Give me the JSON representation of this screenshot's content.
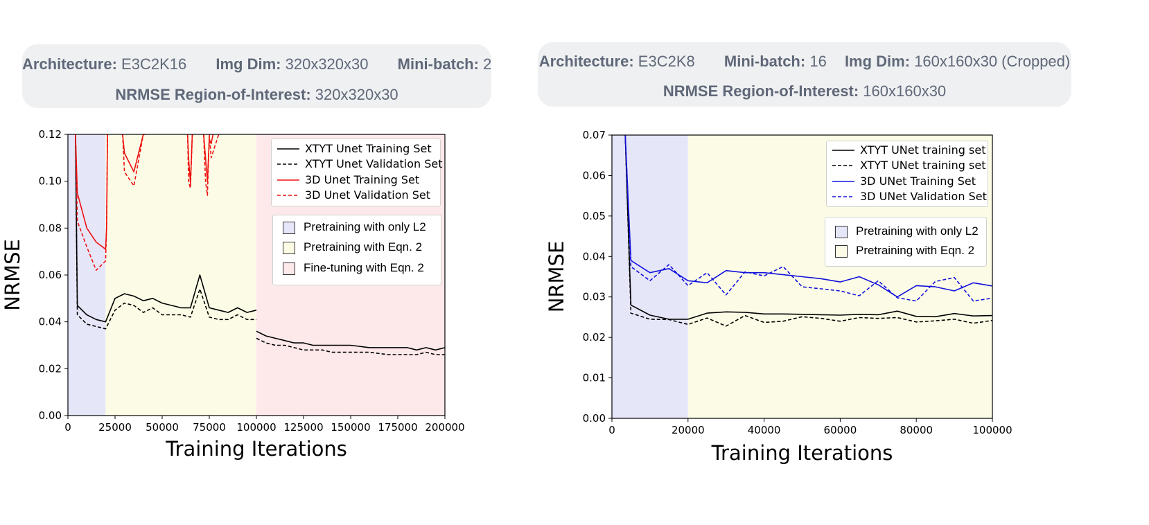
{
  "panels": [
    {
      "header": {
        "architecture_label": "Architecture:",
        "architecture": "E3C2K16",
        "imgdim_label": "Img Dim:",
        "imgdim": "320x320x30",
        "minibatch_label": "Mini-batch:",
        "minibatch": "2",
        "roi_label": "NRMSE Region-of-Interest:",
        "roi": "320x320x30"
      },
      "legend_series": [
        "XTYT Unet Training Set",
        "XTYT Unet Validation Set",
        "3D Unet Training Set",
        "3D Unet Validation Set"
      ],
      "legend_regions": [
        "Pretraining with only L2",
        "Pretraining with Eqn. 2",
        "Fine-tuning with Eqn. 2"
      ]
    },
    {
      "header": {
        "architecture_label": "Architecture:",
        "architecture": "E3C2K8",
        "minibatch_label": "Mini-batch:",
        "minibatch": "16",
        "imgdim_label": "Img Dim:",
        "imgdim": "160x160x30 (Cropped)",
        "roi_label": "NRMSE Region-of-Interest:",
        "roi": "160x160x30"
      },
      "legend_series": [
        "XTYT UNet training set",
        "XTYT UNet training set",
        "3D UNet Training Set",
        "3D UNet Validation Set"
      ],
      "legend_regions": [
        "Pretraining with only L2",
        "Pretraining with Eqn. 2"
      ]
    }
  ],
  "chart_data": [
    {
      "type": "line",
      "title": "",
      "xlabel": "Training Iterations",
      "ylabel": "NRMSE",
      "xlim": [
        0,
        200000
      ],
      "ylim": [
        0,
        0.12
      ],
      "xticks": [
        0,
        25000,
        50000,
        75000,
        100000,
        125000,
        150000,
        175000,
        200000
      ],
      "xtick_labels": [
        "0",
        "25000",
        "50000",
        "75000",
        "100000",
        "125000",
        "150000",
        "175000",
        "200000"
      ],
      "yticks": [
        0,
        0.02,
        0.04,
        0.06,
        0.08,
        0.1,
        0.12
      ],
      "ytick_labels": [
        "0.00",
        "0.02",
        "0.04",
        "0.06",
        "0.08",
        "0.10",
        "0.12"
      ],
      "regions": [
        {
          "label": "Pretraining with only L2",
          "x0": 0,
          "x1": 20000,
          "color": "#e6e6f9"
        },
        {
          "label": "Pretraining with Eqn. 2",
          "x0": 20000,
          "x1": 100000,
          "color": "#fcfce6"
        },
        {
          "label": "Fine-tuning with Eqn. 2",
          "x0": 100000,
          "x1": 200000,
          "color": "#fde8ea"
        }
      ],
      "series": [
        {
          "name": "XTYT Unet Training Set",
          "color": "#000000",
          "dash": false,
          "x": [
            4000,
            5000,
            10000,
            15000,
            20000,
            25000,
            30000,
            35000,
            40000,
            45000,
            50000,
            55000,
            60000,
            65000,
            70000,
            75000,
            80000,
            85000,
            90000,
            95000,
            100000,
            null,
            100000,
            105000,
            110000,
            115000,
            120000,
            125000,
            130000,
            135000,
            140000,
            145000,
            150000,
            160000,
            170000,
            180000,
            185000,
            190000,
            195000,
            200000
          ],
          "y": [
            0.12,
            0.047,
            0.043,
            0.041,
            0.04,
            0.05,
            0.052,
            0.051,
            0.049,
            0.05,
            0.048,
            0.047,
            0.046,
            0.046,
            0.06,
            0.046,
            0.045,
            0.044,
            0.046,
            0.044,
            0.045,
            null,
            0.036,
            0.034,
            0.033,
            0.032,
            0.031,
            0.031,
            0.03,
            0.03,
            0.03,
            0.03,
            0.03,
            0.029,
            0.029,
            0.029,
            0.028,
            0.029,
            0.028,
            0.029
          ]
        },
        {
          "name": "XTYT Unet Validation Set",
          "color": "#000000",
          "dash": true,
          "x": [
            4000,
            5000,
            10000,
            15000,
            20000,
            25000,
            30000,
            35000,
            40000,
            45000,
            50000,
            55000,
            60000,
            65000,
            70000,
            75000,
            80000,
            85000,
            90000,
            95000,
            100000,
            null,
            100000,
            105000,
            110000,
            115000,
            120000,
            125000,
            130000,
            135000,
            140000,
            145000,
            150000,
            160000,
            170000,
            180000,
            185000,
            190000,
            195000,
            200000
          ],
          "y": [
            0.12,
            0.043,
            0.039,
            0.038,
            0.037,
            0.045,
            0.048,
            0.047,
            0.044,
            0.046,
            0.043,
            0.043,
            0.043,
            0.042,
            0.054,
            0.042,
            0.041,
            0.041,
            0.043,
            0.041,
            0.041,
            null,
            0.033,
            0.031,
            0.03,
            0.03,
            0.029,
            0.028,
            0.028,
            0.028,
            0.027,
            0.027,
            0.027,
            0.027,
            0.026,
            0.026,
            0.026,
            0.027,
            0.026,
            0.026
          ]
        },
        {
          "name": "3D Unet Training Set",
          "color": "#ee1111",
          "dash": false,
          "x": [
            4000,
            5000,
            10000,
            15000,
            20000,
            20500,
            21000,
            null,
            29000,
            30000,
            35000,
            40000,
            41000,
            null,
            63500,
            64000,
            65000,
            66000,
            null,
            72000,
            73000,
            74000,
            75000,
            76000,
            77000
          ],
          "y": [
            0.12,
            0.095,
            0.08,
            0.074,
            0.071,
            0.08,
            0.12,
            null,
            0.12,
            0.112,
            0.104,
            0.12,
            0.12,
            null,
            0.12,
            0.11,
            0.099,
            0.12,
            null,
            0.12,
            0.11,
            0.1,
            0.118,
            0.116,
            0.12
          ]
        },
        {
          "name": "3D Unet Validation Set",
          "color": "#ee1111",
          "dash": true,
          "x": [
            4000,
            5000,
            10000,
            15000,
            20000,
            20500,
            21000,
            null,
            29000,
            30000,
            35000,
            40000,
            41000,
            null,
            63500,
            64000,
            65000,
            66000,
            null,
            72000,
            73000,
            74000,
            75000,
            76000,
            80000
          ],
          "y": [
            0.12,
            0.083,
            0.072,
            0.062,
            0.066,
            0.08,
            0.12,
            null,
            0.12,
            0.104,
            0.098,
            0.12,
            0.12,
            null,
            0.12,
            0.1,
            0.097,
            0.12,
            null,
            0.12,
            0.1,
            0.094,
            0.12,
            0.11,
            0.12
          ]
        }
      ]
    },
    {
      "type": "line",
      "title": "",
      "xlabel": "Training Iterations",
      "ylabel": "NRMSE",
      "xlim": [
        0,
        100000
      ],
      "ylim": [
        0,
        0.07
      ],
      "xticks": [
        0,
        20000,
        40000,
        60000,
        80000,
        100000
      ],
      "xtick_labels": [
        "0",
        "20000",
        "40000",
        "60000",
        "80000",
        "100000"
      ],
      "yticks": [
        0,
        0.01,
        0.02,
        0.03,
        0.04,
        0.05,
        0.06,
        0.07
      ],
      "ytick_labels": [
        "0.00",
        "0.01",
        "0.02",
        "0.03",
        "0.04",
        "0.05",
        "0.06",
        "0.07"
      ],
      "regions": [
        {
          "label": "Pretraining with only L2",
          "x0": 0,
          "x1": 20000,
          "color": "#e6e6f9"
        },
        {
          "label": "Pretraining with Eqn. 2",
          "x0": 20000,
          "x1": 100000,
          "color": "#fcfce6"
        }
      ],
      "series": [
        {
          "name": "XTYT UNet training set",
          "color": "#000000",
          "dash": false,
          "x": [
            3500,
            5000,
            10000,
            15000,
            20000,
            25000,
            30000,
            35000,
            40000,
            45000,
            50000,
            55000,
            60000,
            65000,
            70000,
            75000,
            80000,
            85000,
            90000,
            95000,
            100000
          ],
          "y": [
            0.07,
            0.028,
            0.0255,
            0.0245,
            0.0245,
            0.026,
            0.0263,
            0.0262,
            0.0258,
            0.0258,
            0.0257,
            0.0256,
            0.0255,
            0.0257,
            0.0256,
            0.0265,
            0.0252,
            0.0251,
            0.0259,
            0.0253,
            0.0254
          ]
        },
        {
          "name": "XTYT UNet training set",
          "color": "#000000",
          "dash": true,
          "x": [
            3500,
            5000,
            10000,
            15000,
            20000,
            25000,
            30000,
            35000,
            40000,
            45000,
            50000,
            55000,
            60000,
            65000,
            70000,
            75000,
            80000,
            85000,
            90000,
            95000,
            100000
          ],
          "y": [
            0.07,
            0.026,
            0.0245,
            0.0244,
            0.0232,
            0.0248,
            0.0228,
            0.0254,
            0.0237,
            0.024,
            0.0251,
            0.0247,
            0.024,
            0.0249,
            0.0247,
            0.0249,
            0.0238,
            0.0241,
            0.0245,
            0.0235,
            0.0242
          ]
        },
        {
          "name": "3D UNet Training Set",
          "color": "#1111dd",
          "dash": false,
          "x": [
            3500,
            5000,
            10000,
            15000,
            20000,
            25000,
            30000,
            35000,
            40000,
            45000,
            50000,
            55000,
            60000,
            65000,
            70000,
            75000,
            80000,
            85000,
            90000,
            95000,
            100000
          ],
          "y": [
            0.07,
            0.039,
            0.036,
            0.037,
            0.034,
            0.0335,
            0.0365,
            0.036,
            0.036,
            0.0355,
            0.035,
            0.0345,
            0.0337,
            0.035,
            0.033,
            0.03,
            0.0328,
            0.0325,
            0.0315,
            0.0335,
            0.0327
          ]
        },
        {
          "name": "3D UNet Validation Set",
          "color": "#1111dd",
          "dash": true,
          "x": [
            3500,
            5000,
            10000,
            15000,
            20000,
            25000,
            30000,
            35000,
            40000,
            45000,
            50000,
            55000,
            60000,
            65000,
            70000,
            75000,
            80000,
            85000,
            90000,
            95000,
            100000
          ],
          "y": [
            0.07,
            0.0375,
            0.034,
            0.038,
            0.0328,
            0.036,
            0.0305,
            0.0362,
            0.0352,
            0.0375,
            0.0325,
            0.032,
            0.0315,
            0.0303,
            0.034,
            0.0298,
            0.029,
            0.0338,
            0.0348,
            0.029,
            0.0297
          ]
        }
      ]
    }
  ]
}
